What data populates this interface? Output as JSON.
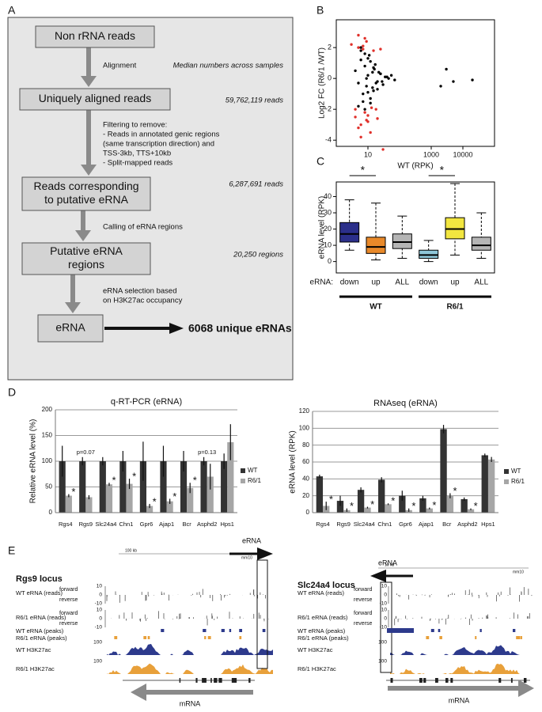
{
  "panels": [
    "A",
    "B",
    "C",
    "D",
    "E"
  ],
  "flowchart": {
    "boxes": [
      [
        "Non rRNA reads"
      ],
      [
        "Uniquely aligned reads"
      ],
      [
        "Reads corresponding",
        "to putative eRNA"
      ],
      [
        "Putative eRNA",
        "regions"
      ],
      [
        "eRNA"
      ]
    ],
    "steps": [
      [
        "Alignment"
      ],
      [
        "Filtering to remove:",
        "- Reads in annotated genic regions",
        "(same transcription direction) and",
        "TSS-3kb, TTS+10kb",
        "- Split-mapped reads"
      ],
      [
        "Calling of eRNA regions"
      ],
      [
        "eRNA selection based",
        "on H3K27ac occupancy"
      ]
    ],
    "note": "Median numbers across samples",
    "counts": [
      "59,762,119 reads",
      "6,287,691 reads",
      "20,250 regions"
    ],
    "result": "6068 unique eRNAs"
  },
  "chart_data": [
    {
      "type": "scatter",
      "x_label": "WT (RPK)",
      "y_label": "Log2 FC (R6/1 /WT)",
      "log_x": true,
      "xlim": [
        1,
        100000
      ],
      "xticks": [
        10,
        1000,
        10000
      ],
      "ylim": [
        -4.4,
        3.8
      ],
      "yticks": [
        -4,
        -2,
        0,
        2
      ],
      "series": [
        {
          "color": "#000000",
          "x": [
            4,
            5,
            6,
            7,
            8,
            9,
            10,
            11,
            12,
            14,
            15,
            17,
            20,
            25,
            30,
            40,
            55,
            70,
            5,
            6,
            7,
            8,
            9,
            10,
            12,
            14,
            16,
            18,
            22,
            28,
            35,
            45,
            6,
            8,
            10,
            12,
            15,
            20,
            25,
            2000,
            3000,
            5000,
            20000
          ],
          "values": [
            0.5,
            -0.3,
            1.2,
            -1.0,
            0.8,
            -0.5,
            0.2,
            1.5,
            -1.3,
            0.4,
            -0.8,
            0.9,
            -0.2,
            0.3,
            -0.4,
            0.1,
            0.2,
            -0.1,
            -1.8,
            1.8,
            -1.5,
            1.6,
            0.0,
            -0.9,
            1.1,
            -0.6,
            0.6,
            -0.3,
            0.4,
            -0.2,
            0.1,
            0.0,
            2.0,
            -2.0,
            1.3,
            -1.6,
            0.7,
            -0.7,
            0.3,
            -0.5,
            0.6,
            -0.2,
            -0.1
          ]
        },
        {
          "color": "#e0302a",
          "x": [
            3,
            4,
            5,
            6,
            7,
            8,
            9,
            10,
            12,
            15,
            18,
            4,
            5,
            6,
            8,
            10,
            13,
            20,
            30,
            5,
            7,
            9,
            25
          ],
          "values": [
            2.2,
            -2.5,
            2.8,
            -3.0,
            1.9,
            -2.2,
            2.4,
            -2.8,
            -3.5,
            1.8,
            -2.0,
            -2.0,
            2.0,
            -3.8,
            2.6,
            -2.4,
            -1.9,
            -2.6,
            -4.6,
            -3.2,
            2.1,
            -2.7,
            1.9
          ]
        }
      ]
    },
    {
      "type": "box",
      "y_label": "eRNA level (RPK)",
      "category_prefix": "eRNA:",
      "categories": [
        "down",
        "up",
        "ALL",
        "down",
        "up",
        "ALL"
      ],
      "colors": [
        "#2b2f8a",
        "#e8892a",
        "#b5b5b5",
        "#8ec6d8",
        "#f2e640",
        "#b5b5b5"
      ],
      "boxes": [
        {
          "min": 7,
          "q1": 12,
          "median": 17,
          "q3": 24,
          "max": 38
        },
        {
          "min": 1,
          "q1": 5,
          "median": 9,
          "q3": 15,
          "max": 36
        },
        {
          "min": 2,
          "q1": 8,
          "median": 12,
          "q3": 17,
          "max": 28
        },
        {
          "min": 0,
          "q1": 2,
          "median": 4,
          "q3": 7,
          "max": 13
        },
        {
          "min": 4,
          "q1": 14,
          "median": 20,
          "q3": 27,
          "max": 48
        },
        {
          "min": 2,
          "q1": 7,
          "median": 10,
          "q3": 15,
          "max": 30
        }
      ],
      "groups": [
        "WT",
        "R6/1"
      ],
      "significance": [
        "*",
        "*"
      ],
      "ylim": [
        -7,
        49
      ],
      "yticks": [
        0,
        10,
        20,
        30,
        40
      ]
    },
    {
      "type": "bar",
      "title": "q-RT-PCR (eRNA)",
      "y_label": "Relative eRNA level (%)",
      "categories": [
        "Rgs4",
        "Rgs9",
        "Slc24a4",
        "Chn1",
        "Gpr6",
        "Ajap1",
        "Bcr",
        "Asphd2",
        "Hps1"
      ],
      "series": [
        {
          "name": "WT",
          "color": "#333333",
          "values": [
            100,
            100,
            100,
            100,
            100,
            100,
            100,
            100,
            100
          ],
          "errors": [
            30,
            8,
            8,
            20,
            38,
            30,
            20,
            8,
            15
          ]
        },
        {
          "name": "R6/1",
          "color": "#a6a6a6",
          "values": [
            33,
            30,
            55,
            56,
            13,
            22,
            48,
            70,
            137
          ],
          "errors": [
            3,
            4,
            3,
            10,
            4,
            5,
            10,
            25,
            35
          ]
        }
      ],
      "annotations": [
        {
          "label": "p=0.07",
          "category": "Rgs9"
        },
        {
          "label": "p=0.13",
          "category": "Asphd2"
        },
        {
          "label": "*",
          "category": "Rgs4",
          "series": "R6/1"
        },
        {
          "label": "*",
          "category": "Slc24a4",
          "series": "R6/1"
        },
        {
          "label": "*",
          "category": "Chn1",
          "series": "R6/1"
        },
        {
          "label": "*",
          "category": "Gpr6",
          "series": "R6/1"
        },
        {
          "label": "*",
          "category": "Ajap1",
          "series": "R6/1"
        },
        {
          "label": "*",
          "category": "Bcr",
          "series": "R6/1"
        }
      ],
      "ylim": [
        0,
        200
      ],
      "yticks": [
        0,
        50,
        100,
        150,
        200
      ],
      "grid": true,
      "legend": "right"
    },
    {
      "type": "bar",
      "title": "RNAseq (eRNA)",
      "y_label": "eRNA level (RPK)",
      "categories": [
        "Rgs4",
        "Rgs9",
        "Slc24a4",
        "Chn1",
        "Gpr6",
        "Ajap1",
        "Bcr",
        "Asphd2",
        "Hps1"
      ],
      "series": [
        {
          "name": "WT",
          "color": "#333333",
          "values": [
            43,
            14,
            27,
            39,
            20,
            17,
            99,
            16,
            68
          ],
          "errors": [
            2,
            6,
            3,
            3,
            6,
            3,
            5,
            2,
            2
          ]
        },
        {
          "name": "R6/1",
          "color": "#a6a6a6",
          "values": [
            8,
            3,
            6,
            10,
            3,
            5,
            20,
            4,
            63
          ],
          "errors": [
            5,
            2,
            1,
            1,
            2,
            1,
            3,
            1,
            3
          ]
        }
      ],
      "annotations": [
        {
          "label": "*",
          "category": "Rgs4",
          "series": "R6/1"
        },
        {
          "label": "*",
          "category": "Rgs9",
          "series": "R6/1"
        },
        {
          "label": "*",
          "category": "Slc24a4",
          "series": "R6/1"
        },
        {
          "label": "*",
          "category": "Chn1",
          "series": "R6/1"
        },
        {
          "label": "*",
          "category": "Gpr6",
          "series": "R6/1"
        },
        {
          "label": "*",
          "category": "Ajap1",
          "series": "R6/1"
        },
        {
          "label": "*",
          "category": "Bcr",
          "series": "R6/1"
        },
        {
          "label": "*",
          "category": "Asphd2",
          "series": "R6/1"
        }
      ],
      "ylim": [
        0,
        120
      ],
      "yticks": [
        0,
        20,
        40,
        60,
        80,
        100,
        120
      ],
      "grid": true,
      "legend": "right"
    }
  ],
  "tracks": [
    {
      "title": "Rgs9 locus",
      "scale": "100 kb",
      "assembly": "mm10",
      "erna": "eRNA",
      "mrna": "mRNA",
      "erna_direction": "right",
      "rows": [
        {
          "label": "WT eRNA (reads)",
          "color": "#2d3a8c"
        },
        {
          "label": "R6/1 eRNA (reads)",
          "color": "#e8a03a"
        },
        {
          "label": "WT eRNA (peaks)",
          "color": "#2d3a8c"
        },
        {
          "label": "R6/1 eRNA (peaks)",
          "color": "#e8a03a"
        },
        {
          "label": "WT H3K27ac",
          "color": "#2d3a8c"
        },
        {
          "label": "R6/1 H3K27ac",
          "color": "#e8a03a"
        }
      ],
      "strands": [
        "forward",
        "reverse"
      ],
      "read_ticks": [
        10,
        0,
        -10
      ],
      "chip_tick": 100
    },
    {
      "title": "Slc24a4 locus",
      "scale": "10 kb",
      "assembly": "mm10",
      "erna": "eRNA",
      "mrna": "mRNA",
      "erna_direction": "left",
      "rows": [
        {
          "label": "WT eRNA (reads)",
          "color": "#2d3a8c"
        },
        {
          "label": "R6/1 eRNA (reads)",
          "color": "#e8a03a"
        },
        {
          "label": "WT eRNA (peaks)",
          "color": "#2d3a8c"
        },
        {
          "label": "R6/1 eRNA (peaks)",
          "color": "#e8a03a"
        },
        {
          "label": "WT H3K27ac",
          "color": "#2d3a8c"
        },
        {
          "label": "R6/1 H3K27ac",
          "color": "#e8a03a"
        }
      ],
      "strands": [
        "forward",
        "reverse"
      ],
      "read_ticks": [
        10,
        0,
        -10
      ],
      "chip_tick": 100
    }
  ]
}
